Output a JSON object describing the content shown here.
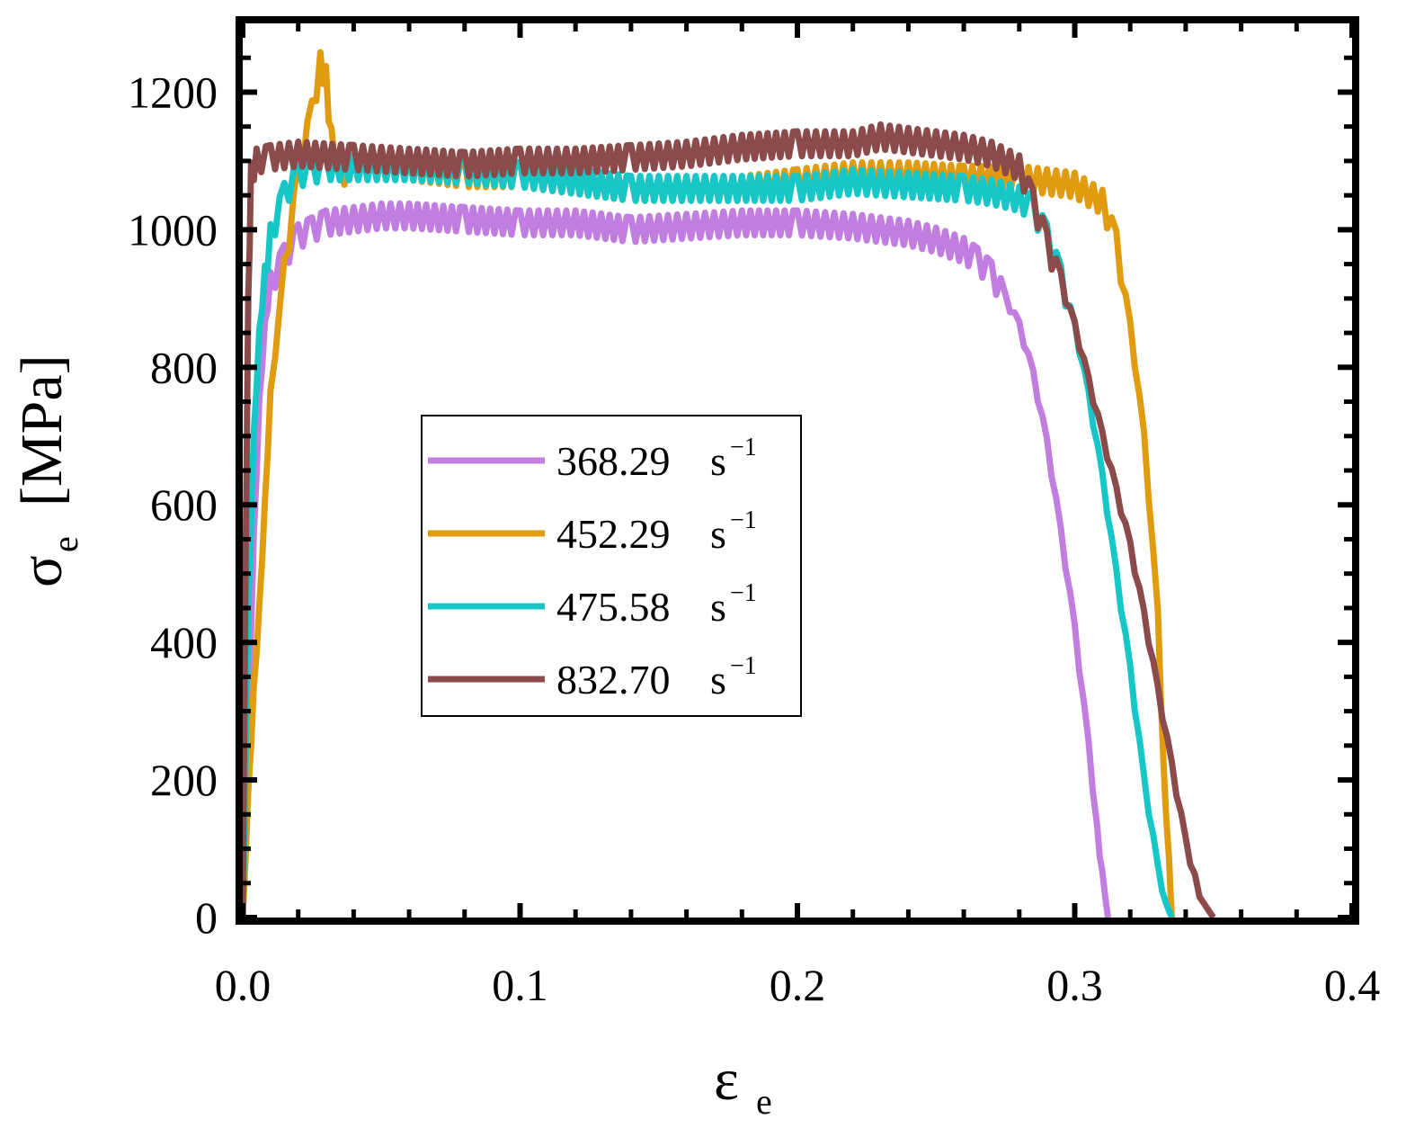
{
  "chart_data": {
    "type": "line",
    "xlabel": "ε",
    "xlabel_sub": "e",
    "ylabel": "σ",
    "ylabel_sub": "e",
    "ylabel_unit": "[MPa]",
    "xlim": [
      0.0,
      0.4
    ],
    "ylim": [
      0,
      1300
    ],
    "xticks": [
      0.0,
      0.1,
      0.2,
      0.3,
      0.4
    ],
    "xtick_labels": [
      "0.0",
      "0.1",
      "0.2",
      "0.3",
      "0.4"
    ],
    "yticks": [
      0,
      200,
      400,
      600,
      800,
      1000,
      1200
    ],
    "ytick_labels": [
      "0",
      "200",
      "400",
      "600",
      "800",
      "1000",
      "1200"
    ],
    "grid": false,
    "legend_position": "center-left",
    "legend_unit": "s",
    "legend_sup": "−1",
    "series": [
      {
        "name": "368.29",
        "color": "#c27de0",
        "x": [
          0.0,
          0.002,
          0.004,
          0.006,
          0.008,
          0.01,
          0.015,
          0.02,
          0.025,
          0.03,
          0.04,
          0.05,
          0.06,
          0.08,
          0.1,
          0.12,
          0.14,
          0.16,
          0.18,
          0.2,
          0.22,
          0.24,
          0.25,
          0.26,
          0.265,
          0.27,
          0.275,
          0.28,
          0.285,
          0.29,
          0.295,
          0.3,
          0.305,
          0.308,
          0.31,
          0.312
        ],
        "y": [
          0,
          300,
          550,
          750,
          860,
          920,
          960,
          990,
          1000,
          1010,
          1015,
          1020,
          1020,
          1015,
          1010,
          1010,
          1000,
          1005,
          1010,
          1010,
          1005,
          995,
          985,
          970,
          955,
          935,
          900,
          860,
          790,
          690,
          560,
          420,
          250,
          130,
          60,
          0
        ]
      },
      {
        "name": "452.29",
        "color": "#e09b0e",
        "x": [
          0.0,
          0.002,
          0.004,
          0.006,
          0.008,
          0.01,
          0.015,
          0.02,
          0.025,
          0.028,
          0.03,
          0.032,
          0.035,
          0.04,
          0.05,
          0.06,
          0.08,
          0.1,
          0.12,
          0.14,
          0.16,
          0.18,
          0.2,
          0.22,
          0.24,
          0.26,
          0.28,
          0.29,
          0.3,
          0.31,
          0.315,
          0.32,
          0.325,
          0.33,
          0.332,
          0.334,
          0.335
        ],
        "y": [
          0,
          180,
          330,
          450,
          600,
          760,
          940,
          1080,
          1170,
          1240,
          1220,
          1130,
          1080,
          1090,
          1100,
          1090,
          1080,
          1080,
          1070,
          1060,
          1060,
          1060,
          1070,
          1080,
          1080,
          1075,
          1075,
          1070,
          1065,
          1040,
          980,
          860,
          700,
          440,
          220,
          80,
          0
        ]
      },
      {
        "name": "475.58",
        "color": "#17c7c7",
        "x": [
          0.0,
          0.002,
          0.004,
          0.006,
          0.008,
          0.01,
          0.015,
          0.02,
          0.025,
          0.03,
          0.04,
          0.06,
          0.08,
          0.1,
          0.12,
          0.14,
          0.16,
          0.18,
          0.2,
          0.22,
          0.24,
          0.26,
          0.27,
          0.28,
          0.285,
          0.29,
          0.295,
          0.3,
          0.305,
          0.31,
          0.315,
          0.32,
          0.325,
          0.33,
          0.333,
          0.335
        ],
        "y": [
          0,
          450,
          700,
          850,
          930,
          990,
          1050,
          1080,
          1085,
          1090,
          1090,
          1090,
          1085,
          1080,
          1070,
          1060,
          1060,
          1060,
          1060,
          1070,
          1065,
          1060,
          1055,
          1045,
          1030,
          990,
          930,
          860,
          760,
          640,
          500,
          360,
          200,
          70,
          20,
          0
        ]
      },
      {
        "name": "832.70",
        "color": "#8c4b4b",
        "x": [
          0.0,
          0.001,
          0.002,
          0.003,
          0.005,
          0.01,
          0.02,
          0.04,
          0.06,
          0.08,
          0.1,
          0.12,
          0.14,
          0.16,
          0.18,
          0.2,
          0.22,
          0.23,
          0.24,
          0.25,
          0.26,
          0.27,
          0.28,
          0.285,
          0.29,
          0.295,
          0.3,
          0.305,
          0.31,
          0.315,
          0.32,
          0.325,
          0.33,
          0.335,
          0.34,
          0.345,
          0.35
        ],
        "y": [
          0,
          500,
          900,
          1080,
          1100,
          1105,
          1110,
          1105,
          1100,
          1095,
          1100,
          1100,
          1105,
          1110,
          1120,
          1125,
          1125,
          1135,
          1130,
          1125,
          1120,
          1110,
          1090,
          1040,
          980,
          920,
          860,
          780,
          700,
          620,
          540,
          440,
          330,
          220,
          110,
          30,
          0
        ]
      }
    ]
  }
}
